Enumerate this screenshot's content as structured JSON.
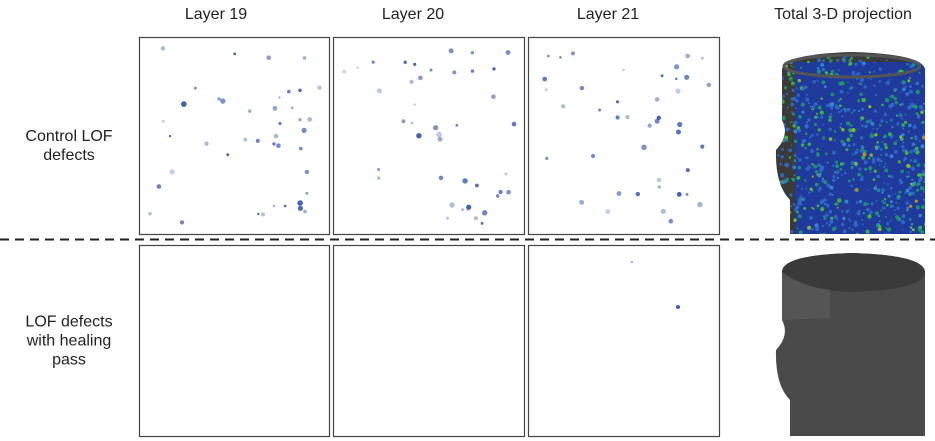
{
  "columns": [
    "Layer 19",
    "Layer 20",
    "Layer 21",
    "Total 3-D projection"
  ],
  "rows": [
    {
      "label": "Control LOF defects"
    },
    {
      "label": "LOF defects with healing pass"
    }
  ]
}
